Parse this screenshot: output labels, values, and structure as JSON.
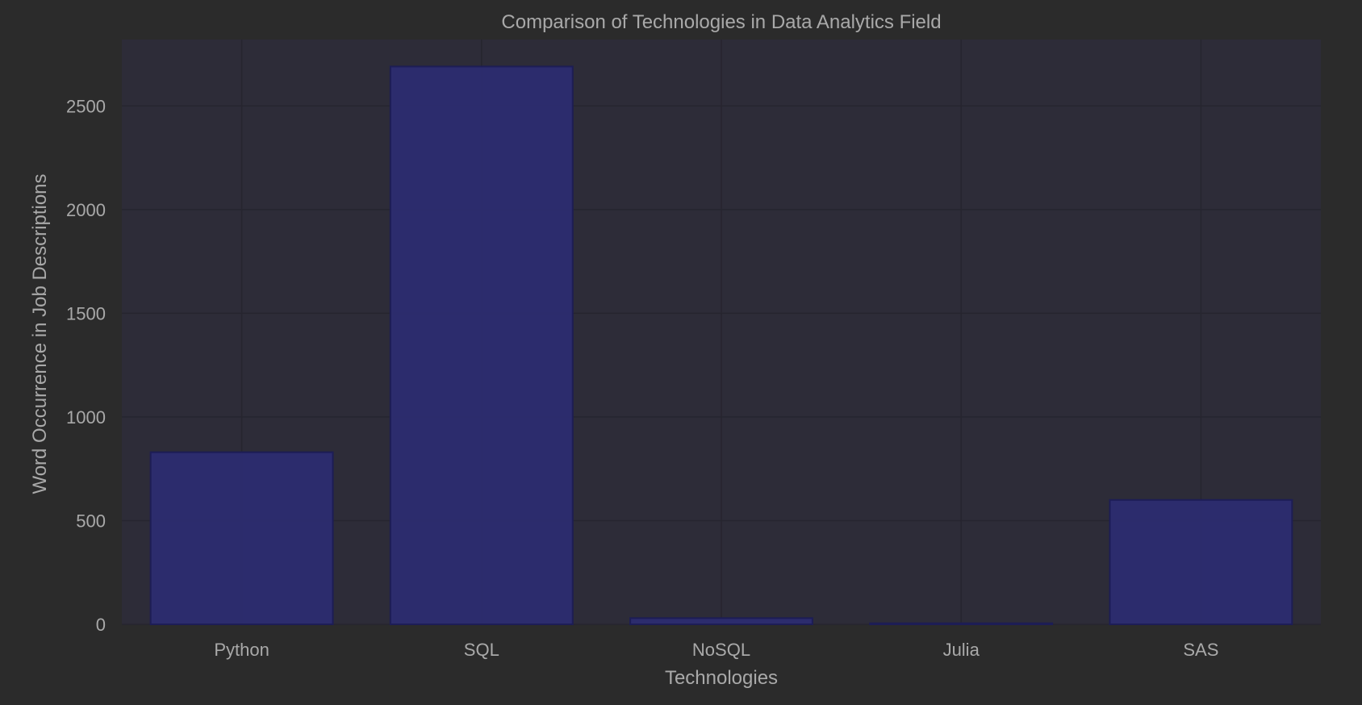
{
  "chart_data": {
    "type": "bar",
    "title": "Comparison of Technologies in Data Analytics Field",
    "xlabel": "Technologies",
    "ylabel": "Word Occurrence in Job Descriptions",
    "categories": [
      "Python",
      "SQL",
      "NoSQL",
      "Julia",
      "SAS"
    ],
    "values": [
      830,
      2690,
      30,
      5,
      600
    ],
    "ylim": [
      0,
      2820
    ],
    "yticks": [
      0,
      500,
      1000,
      1500,
      2000,
      2500
    ],
    "grid": true,
    "legend": "none"
  },
  "colors": {
    "background": "#2b2b2b",
    "plot_background": "#2d2c38",
    "bar_fill": "#2c2c70",
    "bar_edge": "#1d1d55",
    "grid": "#26252f",
    "text": "#a9a9a9"
  }
}
